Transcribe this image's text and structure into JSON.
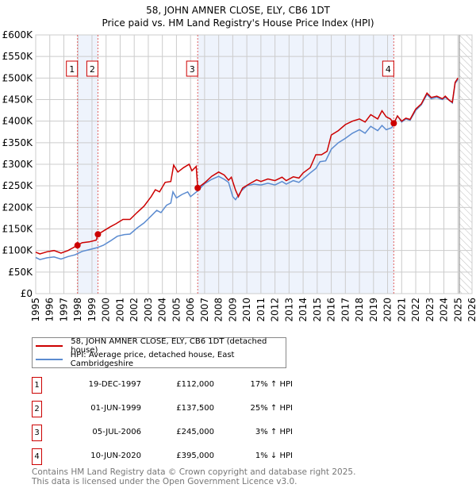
{
  "chart_data": {
    "type": "line",
    "title": "58, JOHN AMNER CLOSE, ELY, CB6 1DT",
    "subtitle": "Price paid vs. HM Land Registry's House Price Index (HPI)",
    "xlabel": "",
    "ylabel": "",
    "xlim": [
      1995,
      2026
    ],
    "ylim": [
      0,
      600000
    ],
    "x_ticks": [
      "1995",
      "1996",
      "1997",
      "1998",
      "1999",
      "2000",
      "2001",
      "2002",
      "2003",
      "2004",
      "2005",
      "2006",
      "2007",
      "2008",
      "2009",
      "2010",
      "2011",
      "2012",
      "2013",
      "2014",
      "2015",
      "2016",
      "2017",
      "2018",
      "2019",
      "2020",
      "2021",
      "2022",
      "2023",
      "2024",
      "2025",
      "2026"
    ],
    "y_ticks": [
      {
        "value": 0,
        "label": "£0"
      },
      {
        "value": 50000,
        "label": "£50K"
      },
      {
        "value": 100000,
        "label": "£100K"
      },
      {
        "value": 150000,
        "label": "£150K"
      },
      {
        "value": 200000,
        "label": "£200K"
      },
      {
        "value": 250000,
        "label": "£250K"
      },
      {
        "value": 300000,
        "label": "£300K"
      },
      {
        "value": 350000,
        "label": "£350K"
      },
      {
        "value": 400000,
        "label": "£400K"
      },
      {
        "value": 450000,
        "label": "£450K"
      },
      {
        "value": 500000,
        "label": "£500K"
      },
      {
        "value": 550000,
        "label": "£550K"
      },
      {
        "value": 600000,
        "label": "£600K"
      }
    ],
    "grid": true,
    "shaded_ranges": [
      [
        1997.97,
        1999.42
      ],
      [
        2006.51,
        2020.44
      ]
    ],
    "forecast_hatch_from": 2025.1,
    "series": [
      {
        "name": "58, JOHN AMNER CLOSE, ELY, CB6 1DT (detached house)",
        "color": "#cc0000",
        "points": [
          [
            1995,
            96
          ],
          [
            1995.3,
            92
          ],
          [
            1995.8,
            97
          ],
          [
            1996.3,
            100
          ],
          [
            1996.8,
            94
          ],
          [
            1997.3,
            100
          ],
          [
            1997.97,
            112
          ],
          [
            1998.3,
            118
          ],
          [
            1998.8,
            120
          ],
          [
            1999.3,
            124
          ],
          [
            1999.42,
            137.5
          ],
          [
            1999.8,
            145
          ],
          [
            2000.3,
            155
          ],
          [
            2000.7,
            162
          ],
          [
            2001.2,
            172
          ],
          [
            2001.7,
            172
          ],
          [
            2002.2,
            188
          ],
          [
            2002.7,
            203
          ],
          [
            2003.2,
            225
          ],
          [
            2003.5,
            241
          ],
          [
            2003.8,
            236
          ],
          [
            2004.2,
            258
          ],
          [
            2004.6,
            260
          ],
          [
            2004.8,
            298
          ],
          [
            2005.1,
            282
          ],
          [
            2005.5,
            292
          ],
          [
            2005.9,
            300
          ],
          [
            2006.1,
            285
          ],
          [
            2006.4,
            295
          ],
          [
            2006.51,
            245
          ],
          [
            2007,
            257
          ],
          [
            2007.5,
            272
          ],
          [
            2008,
            282
          ],
          [
            2008.4,
            275
          ],
          [
            2008.7,
            263
          ],
          [
            2008.9,
            270
          ],
          [
            2009.2,
            240
          ],
          [
            2009.4,
            225
          ],
          [
            2009.7,
            245
          ],
          [
            2010.2,
            255
          ],
          [
            2010.7,
            264
          ],
          [
            2011,
            260
          ],
          [
            2011.5,
            266
          ],
          [
            2012,
            262
          ],
          [
            2012.5,
            270
          ],
          [
            2012.8,
            262
          ],
          [
            2013.3,
            271
          ],
          [
            2013.7,
            268
          ],
          [
            2014,
            280
          ],
          [
            2014.5,
            292
          ],
          [
            2014.9,
            322
          ],
          [
            2015.3,
            322
          ],
          [
            2015.7,
            330
          ],
          [
            2016,
            368
          ],
          [
            2016.5,
            378
          ],
          [
            2017,
            392
          ],
          [
            2017.5,
            400
          ],
          [
            2018,
            405
          ],
          [
            2018.4,
            398
          ],
          [
            2018.8,
            415
          ],
          [
            2019.3,
            405
          ],
          [
            2019.6,
            424
          ],
          [
            2019.9,
            410
          ],
          [
            2020.2,
            405
          ],
          [
            2020.44,
            395
          ],
          [
            2020.7,
            412
          ],
          [
            2021,
            400
          ],
          [
            2021.3,
            407
          ],
          [
            2021.6,
            404
          ],
          [
            2022,
            428
          ],
          [
            2022.4,
            440
          ],
          [
            2022.8,
            465
          ],
          [
            2023.1,
            455
          ],
          [
            2023.5,
            458
          ],
          [
            2023.9,
            452
          ],
          [
            2024.1,
            458
          ],
          [
            2024.4,
            448
          ],
          [
            2024.6,
            444
          ],
          [
            2024.8,
            490
          ],
          [
            2025,
            500
          ]
        ]
      },
      {
        "name": "HPI: Average price, detached house, East Cambridgeshire",
        "color": "#5b8bd0",
        "points": [
          [
            1995,
            84
          ],
          [
            1995.3,
            79
          ],
          [
            1995.8,
            83
          ],
          [
            1996.3,
            85
          ],
          [
            1996.8,
            80
          ],
          [
            1997.3,
            86
          ],
          [
            1997.8,
            90
          ],
          [
            1998.3,
            98
          ],
          [
            1998.8,
            102
          ],
          [
            1999.3,
            106
          ],
          [
            1999.8,
            112
          ],
          [
            2000.3,
            122
          ],
          [
            2000.8,
            133
          ],
          [
            2001.3,
            137
          ],
          [
            2001.7,
            138
          ],
          [
            2002.2,
            152
          ],
          [
            2002.7,
            164
          ],
          [
            2003.2,
            180
          ],
          [
            2003.6,
            193
          ],
          [
            2003.9,
            188
          ],
          [
            2004.3,
            205
          ],
          [
            2004.6,
            210
          ],
          [
            2004.75,
            236
          ],
          [
            2005,
            222
          ],
          [
            2005.4,
            230
          ],
          [
            2005.8,
            236
          ],
          [
            2006,
            225
          ],
          [
            2006.5,
            238
          ],
          [
            2007,
            255
          ],
          [
            2007.5,
            265
          ],
          [
            2008,
            272
          ],
          [
            2008.4,
            265
          ],
          [
            2008.7,
            258
          ],
          [
            2009,
            225
          ],
          [
            2009.2,
            218
          ],
          [
            2009.6,
            238
          ],
          [
            2010,
            250
          ],
          [
            2010.5,
            254
          ],
          [
            2011,
            252
          ],
          [
            2011.5,
            256
          ],
          [
            2012,
            252
          ],
          [
            2012.5,
            260
          ],
          [
            2012.8,
            254
          ],
          [
            2013.3,
            262
          ],
          [
            2013.7,
            258
          ],
          [
            2014,
            266
          ],
          [
            2014.5,
            280
          ],
          [
            2014.9,
            290
          ],
          [
            2015.2,
            306
          ],
          [
            2015.6,
            308
          ],
          [
            2016,
            335
          ],
          [
            2016.5,
            350
          ],
          [
            2017,
            360
          ],
          [
            2017.5,
            372
          ],
          [
            2018,
            380
          ],
          [
            2018.4,
            372
          ],
          [
            2018.8,
            388
          ],
          [
            2019.3,
            378
          ],
          [
            2019.6,
            390
          ],
          [
            2019.9,
            380
          ],
          [
            2020.3,
            385
          ],
          [
            2020.5,
            398
          ],
          [
            2020.7,
            412
          ],
          [
            2021,
            398
          ],
          [
            2021.3,
            405
          ],
          [
            2021.6,
            402
          ],
          [
            2022,
            425
          ],
          [
            2022.4,
            438
          ],
          [
            2022.8,
            462
          ],
          [
            2023.1,
            452
          ],
          [
            2023.5,
            455
          ],
          [
            2023.9,
            450
          ],
          [
            2024.1,
            455
          ],
          [
            2024.4,
            448
          ],
          [
            2024.6,
            442
          ],
          [
            2024.8,
            488
          ],
          [
            2025,
            497
          ]
        ]
      }
    ],
    "value_units": "thousands GBP in points",
    "sales": [
      {
        "num": "1",
        "x": 1997.97,
        "price": 112000,
        "date": "19-DEC-1997",
        "price_label": "£112,000",
        "hpi": "17% ↑ HPI"
      },
      {
        "num": "2",
        "x": 1999.42,
        "price": 137500,
        "date": "01-JUN-1999",
        "price_label": "£137,500",
        "hpi": "25% ↑ HPI"
      },
      {
        "num": "3",
        "x": 2006.51,
        "price": 245000,
        "date": "05-JUL-2006",
        "price_label": "£245,000",
        "hpi": "3% ↑ HPI"
      },
      {
        "num": "4",
        "x": 2020.44,
        "price": 395000,
        "date": "10-JUN-2020",
        "price_label": "£395,000",
        "hpi": "1% ↓ HPI"
      }
    ]
  },
  "footer": {
    "line1": "Contains HM Land Registry data © Crown copyright and database right 2025.",
    "line2": "This data is licensed under the Open Government Licence v3.0."
  }
}
